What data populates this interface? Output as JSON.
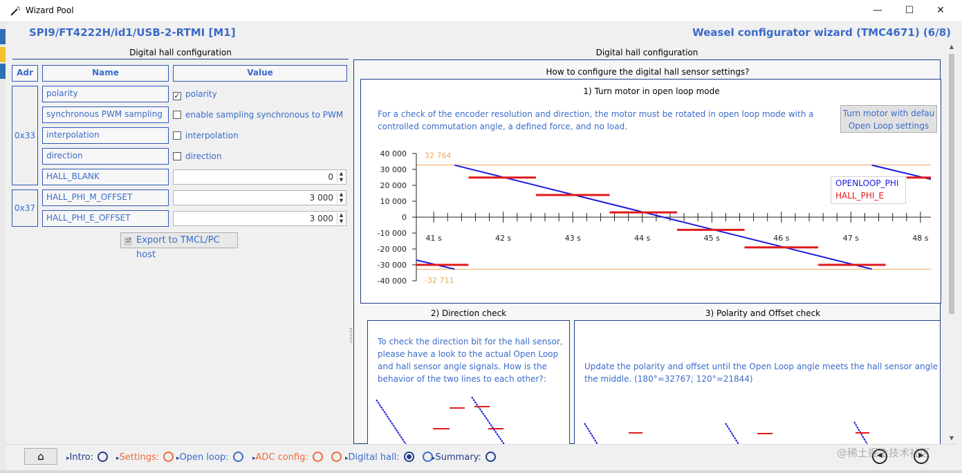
{
  "window": {
    "title": "Wizard Pool",
    "controls": {
      "minimize": "—",
      "maximize": "☐",
      "close": "✕"
    }
  },
  "header": {
    "device": "SPI9/FT4222H/id1/USB-2-RTMI [M1]",
    "wizard": "Weasel configurator wizard (TMC4671) (6/8)"
  },
  "left_panel": {
    "title": "Digital hall configuration",
    "columns": {
      "adr": "Adr",
      "name": "Name",
      "value": "Value"
    },
    "groups": [
      {
        "adr": "0x33"
      },
      {
        "adr": "0x37"
      }
    ],
    "rows": [
      {
        "name": "polarity",
        "value": "polarity",
        "checked": true
      },
      {
        "name": "synchronous PWM sampling",
        "value": "enable sampling synchronous to PWM",
        "checked": false
      },
      {
        "name": "interpolation",
        "value": "interpolation",
        "checked": false
      },
      {
        "name": "direction",
        "value": "direction",
        "checked": false
      },
      {
        "name": "HALL_BLANK",
        "value": "0"
      },
      {
        "name": "HALL_PHI_M_OFFSET",
        "value": "3 000"
      },
      {
        "name": "HALL_PHI_E_OFFSET",
        "value": "3 000"
      }
    ],
    "export_label": "Export to TMCL/PC host"
  },
  "right_panel": {
    "title": "Digital hall configuration",
    "subtitle": "How to configure the digital hall sensor settings?",
    "step1": {
      "title": "1) Turn motor in open loop mode",
      "text": "For a check of the encoder resolution and direction, the motor must be rotated in open loop mode with a controlled commutation angle, a defined force, and no load.",
      "button_line1": "Turn motor with defau",
      "button_line2": "Open Loop settings"
    },
    "step2": {
      "title": "2) Direction check",
      "text": "To check the direction bit for the hall sensor, please have a look to the actual Open Loop and hall sensor angle signals. How is the behavior of the two lines to each other?:"
    },
    "step3": {
      "title": "3) Polarity and Offset check",
      "text": "Update the polarity and offset until the Open Loop angle meets the hall sensor angle the middle. (180°=32767; 120°=21844)"
    }
  },
  "chart_data": {
    "type": "line",
    "title": "",
    "xlabel": "",
    "ylabel": "",
    "xlim": [
      40.75,
      48.15
    ],
    "ylim": [
      -40000,
      40000
    ],
    "x_ticks": [
      "41 s",
      "42 s",
      "43 s",
      "44 s",
      "45 s",
      "46 s",
      "47 s",
      "48 s"
    ],
    "y_ticks": [
      "40 000",
      "30 000",
      "20 000",
      "10 000",
      "0",
      "-10 000",
      "-20 000",
      "-30 000",
      "-40 000"
    ],
    "reference_lines": [
      {
        "value": 32764,
        "label": "32 764",
        "color": "#e8a85a"
      },
      {
        "value": -32711,
        "label": "-32 711",
        "color": "#e8a85a"
      }
    ],
    "legend_position": "right",
    "series": [
      {
        "name": "OPENLOOP_PHI",
        "color": "#1a1ae0",
        "segments": [
          [
            [
              40.75,
              -27000
            ],
            [
              41.3,
              -32700
            ]
          ],
          [
            [
              41.3,
              32700
            ],
            [
              47.3,
              -32700
            ]
          ],
          [
            [
              47.3,
              32700
            ],
            [
              48.15,
              23800
            ]
          ]
        ]
      },
      {
        "name": "HALL_PHI_E",
        "color": "#e01a1a",
        "segments": [
          [
            [
              40.75,
              -30000
            ],
            [
              41.5,
              -30000
            ]
          ],
          [
            [
              41.5,
              24900
            ],
            [
              42.47,
              24900
            ]
          ],
          [
            [
              42.47,
              13900
            ],
            [
              43.53,
              13900
            ]
          ],
          [
            [
              43.53,
              3000
            ],
            [
              44.5,
              3000
            ]
          ],
          [
            [
              44.5,
              -8000
            ],
            [
              45.47,
              -8000
            ]
          ],
          [
            [
              45.47,
              -19000
            ],
            [
              46.53,
              -19000
            ]
          ],
          [
            [
              46.53,
              -30000
            ],
            [
              47.5,
              -30000
            ]
          ],
          [
            [
              47.8,
              24900
            ],
            [
              48.15,
              24900
            ]
          ]
        ]
      }
    ]
  },
  "footer": {
    "home_icon": "⌂",
    "steps": [
      {
        "label": "Intro:",
        "color": "#1f3c88",
        "rings": 1
      },
      {
        "label": "Settings:",
        "color": "#ee6a3c",
        "rings": 1
      },
      {
        "label": "Open loop:",
        "color": "#3a6bc9",
        "rings": 1
      },
      {
        "label": "ADC config:",
        "color": "#ee6a3c",
        "rings": 2
      },
      {
        "label": "Digital hall:",
        "color": "#3a6bc9",
        "rings": 2
      },
      {
        "label": "Summary:",
        "color": "#1f3c88",
        "rings": 1
      }
    ],
    "watermark": "@稀土掘金技术社区"
  }
}
